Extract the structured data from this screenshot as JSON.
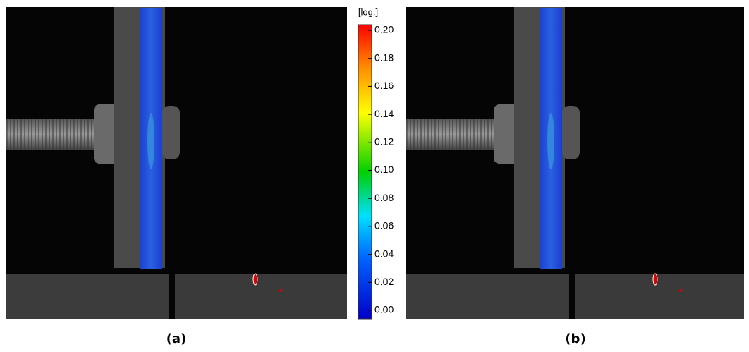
{
  "panels": [
    {
      "label": "(a)"
    },
    {
      "label": "(b)"
    }
  ],
  "colorbar": {
    "unit": "[log.]",
    "ticks": [
      {
        "value": 0.0,
        "label": "0.00"
      },
      {
        "value": 0.02,
        "label": "0.02"
      },
      {
        "value": 0.04,
        "label": "0.04"
      },
      {
        "value": 0.06,
        "label": "0.06"
      },
      {
        "value": 0.08,
        "label": "0.08"
      },
      {
        "value": 0.1,
        "label": "0.10"
      },
      {
        "value": 0.12,
        "label": "0.12"
      },
      {
        "value": 0.14,
        "label": "0.14"
      },
      {
        "value": 0.16,
        "label": "0.16"
      },
      {
        "value": 0.18,
        "label": "0.18"
      },
      {
        "value": 0.2,
        "label": "0.20"
      }
    ]
  }
}
